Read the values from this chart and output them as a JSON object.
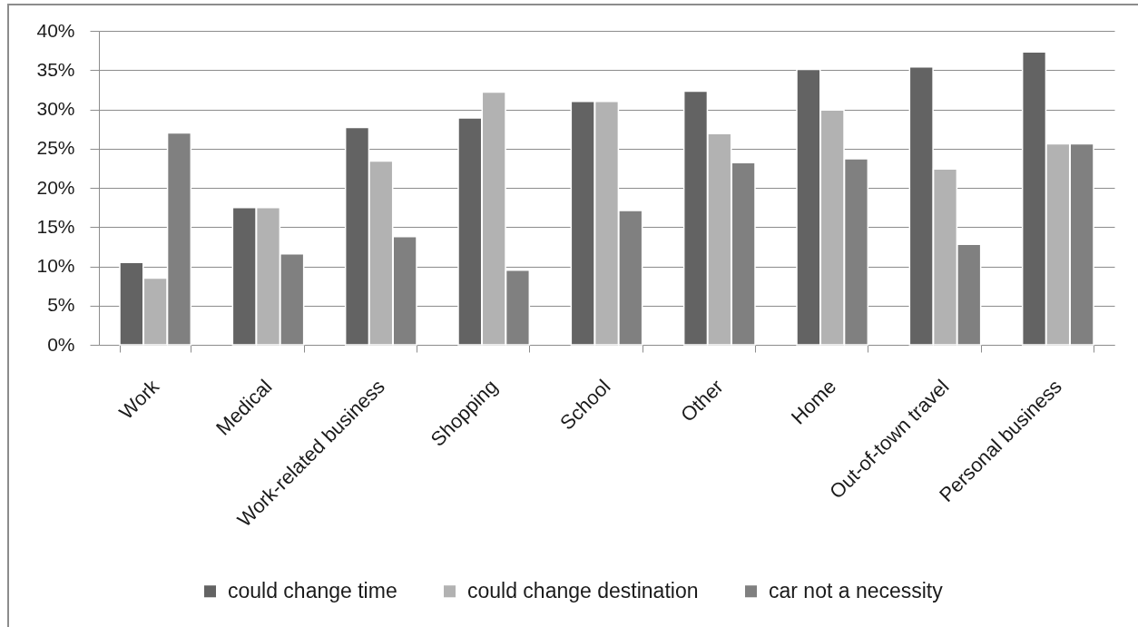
{
  "chart_data": {
    "type": "bar",
    "categories": [
      "Work",
      "Medical",
      "Work-related business",
      "Shopping",
      "School",
      "Other",
      "Home",
      "Out-of-town travel",
      "Personal business"
    ],
    "series": [
      {
        "name": "could change time",
        "color": "#636363",
        "values": [
          10.5,
          17.5,
          27.7,
          28.9,
          31.0,
          32.3,
          35.1,
          35.4,
          37.3
        ]
      },
      {
        "name": "could change destination",
        "color": "#b2b2b2",
        "values": [
          8.5,
          17.5,
          23.4,
          32.2,
          31.0,
          26.9,
          29.9,
          22.4,
          25.6
        ]
      },
      {
        "name": "car not a necessity",
        "color": "#808080",
        "values": [
          27.0,
          11.6,
          13.8,
          9.5,
          17.1,
          23.2,
          23.7,
          12.8,
          25.6
        ]
      }
    ],
    "ylim": [
      0,
      40
    ],
    "yticks": [
      {
        "value": 0,
        "label": "0%"
      },
      {
        "value": 5,
        "label": "5%"
      },
      {
        "value": 10,
        "label": "10%"
      },
      {
        "value": 15,
        "label": "15%"
      },
      {
        "value": 20,
        "label": "20%"
      },
      {
        "value": 25,
        "label": "25%"
      },
      {
        "value": 30,
        "label": "30%"
      },
      {
        "value": 35,
        "label": "35%"
      },
      {
        "value": 40,
        "label": "40%"
      }
    ],
    "grid": "y",
    "legend": "bottom"
  }
}
